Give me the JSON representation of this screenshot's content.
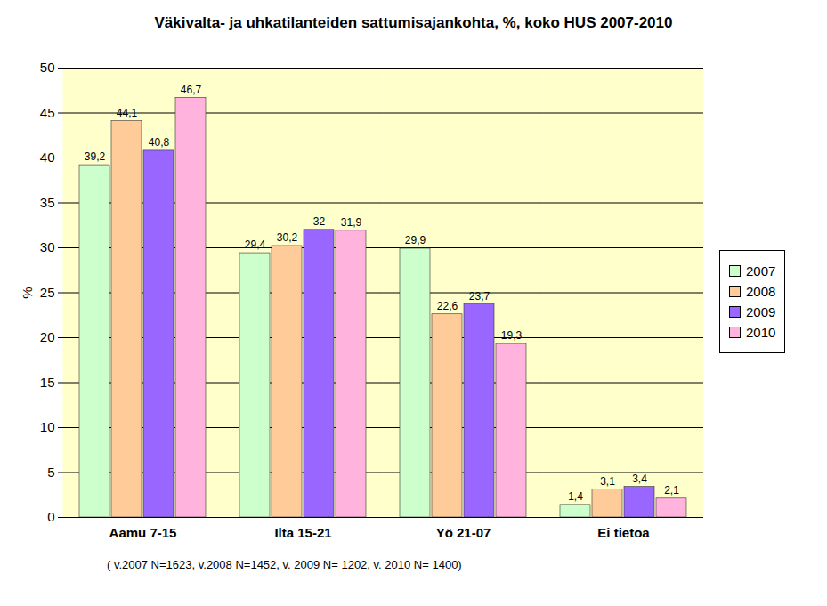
{
  "chart_data": {
    "type": "bar",
    "title": "Väkivalta- ja uhkatilanteiden sattumisajankohta, %, koko HUS 2007-2010",
    "y_label": "%",
    "caption": "( v.2007 N=1623, v.2008 N=1452, v. 2009 N= 1202, v. 2010 N= 1400)",
    "categories": [
      "Aamu 7-15",
      "Ilta 15-21",
      "Yö 21-07",
      "Ei tietoa"
    ],
    "series": [
      {
        "name": "2007",
        "color": "#ccffcc",
        "values": [
          39.2,
          29.4,
          29.9,
          1.4
        ],
        "value_labels": [
          "39,2",
          "29,4",
          "29,9",
          "1,4"
        ]
      },
      {
        "name": "2008",
        "color": "#ffcc99",
        "values": [
          44.1,
          30.2,
          22.6,
          3.1
        ],
        "value_labels": [
          "44,1",
          "30,2",
          "22,6",
          "3,1"
        ]
      },
      {
        "name": "2009",
        "color": "#9966ff",
        "values": [
          40.8,
          32,
          23.7,
          3.4
        ],
        "value_labels": [
          "40,8",
          "32",
          "23,7",
          "3,4"
        ]
      },
      {
        "name": "2010",
        "color": "#ffb3dd",
        "values": [
          46.7,
          31.9,
          19.3,
          2.1
        ],
        "value_labels": [
          "46,7",
          "31,9",
          "19,3",
          "2,1"
        ]
      }
    ],
    "ylim": [
      0,
      50
    ],
    "yticks": [
      0,
      5,
      10,
      15,
      20,
      25,
      30,
      35,
      40,
      45,
      50
    ],
    "grid": true,
    "legend": "right",
    "data_labels": true
  }
}
